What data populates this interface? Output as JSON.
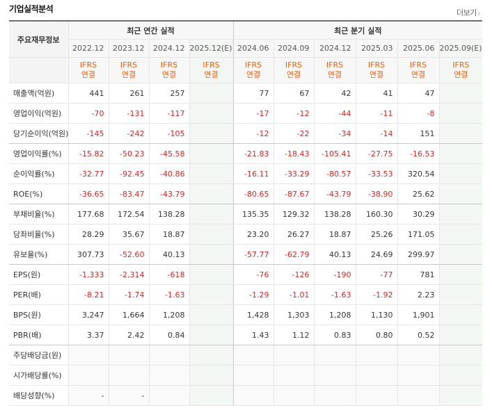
{
  "page": {
    "title": "기업실적분석",
    "more_label": "더보기"
  },
  "header": {
    "corner_label": "주요재무정보",
    "annual_group": "최근 연간 실적",
    "quarter_group": "최근 분기 실적",
    "annual_periods": [
      "2022.12",
      "2023.12",
      "2024.12",
      "2025.12(E)"
    ],
    "quarter_periods": [
      "2024.06",
      "2024.09",
      "2024.12",
      "2025.03",
      "2025.06",
      "2025.09(E)"
    ],
    "ifrs_line1": "IFRS",
    "ifrs_line2": "연결"
  },
  "rows": [
    {
      "label": "매출액(억원)",
      "values": [
        "441",
        "261",
        "257",
        "",
        "77",
        "67",
        "42",
        "41",
        "47",
        ""
      ]
    },
    {
      "label": "영업이익(억원)",
      "values": [
        "-70",
        "-131",
        "-117",
        "",
        "-17",
        "-12",
        "-44",
        "-11",
        "-8",
        ""
      ]
    },
    {
      "label": "당기순이익(억원)",
      "values": [
        "-145",
        "-242",
        "-105",
        "",
        "-12",
        "-22",
        "-34",
        "-14",
        "151",
        ""
      ]
    },
    {
      "label": "영업이익률(%)",
      "values": [
        "-15.82",
        "-50.23",
        "-45.58",
        "",
        "-21.83",
        "-18.43",
        "-105.41",
        "-27.75",
        "-16.53",
        ""
      ]
    },
    {
      "label": "순이익률(%)",
      "values": [
        "-32.77",
        "-92.45",
        "-40.86",
        "",
        "-16.11",
        "-33.29",
        "-80.57",
        "-33.53",
        "320.54",
        ""
      ]
    },
    {
      "label": "ROE(%)",
      "values": [
        "-36.65",
        "-83.47",
        "-43.79",
        "",
        "-80.65",
        "-87.67",
        "-43.79",
        "-38.90",
        "25.62",
        ""
      ]
    },
    {
      "label": "부채비율(%)",
      "values": [
        "177.68",
        "172.54",
        "138.28",
        "",
        "135.35",
        "129.32",
        "138.28",
        "160.30",
        "30.29",
        ""
      ]
    },
    {
      "label": "당좌비율(%)",
      "values": [
        "28.29",
        "35.67",
        "18.87",
        "",
        "23.20",
        "26.27",
        "18.87",
        "25.26",
        "171.05",
        ""
      ]
    },
    {
      "label": "유보율(%)",
      "values": [
        "307.73",
        "-52.60",
        "40.13",
        "",
        "-57.77",
        "-62.79",
        "40.13",
        "24.69",
        "299.97",
        ""
      ]
    },
    {
      "label": "EPS(원)",
      "values": [
        "-1,333",
        "-2,314",
        "-618",
        "",
        "-76",
        "-126",
        "-190",
        "-77",
        "781",
        ""
      ]
    },
    {
      "label": "PER(배)",
      "values": [
        "-8.21",
        "-1.74",
        "-1.63",
        "",
        "-1.29",
        "-1.01",
        "-1.63",
        "-1.92",
        "2.23",
        ""
      ]
    },
    {
      "label": "BPS(원)",
      "values": [
        "3,247",
        "1,664",
        "1,208",
        "",
        "1,428",
        "1,303",
        "1,208",
        "1,130",
        "1,901",
        ""
      ]
    },
    {
      "label": "PBR(배)",
      "values": [
        "3.37",
        "2.42",
        "0.84",
        "",
        "1.43",
        "1.12",
        "0.83",
        "0.80",
        "0.52",
        ""
      ]
    },
    {
      "label": "주당배당금(원)",
      "values": [
        "",
        "",
        "",
        "",
        "",
        "",
        "",
        "",
        "",
        ""
      ]
    },
    {
      "label": "시가배당률(%)",
      "values": [
        "",
        "",
        "",
        "",
        "",
        "",
        "",
        "",
        "",
        ""
      ]
    },
    {
      "label": "배당성향(%)",
      "values": [
        "-",
        "-",
        "",
        "",
        "",
        "",
        "",
        "",
        "",
        ""
      ]
    }
  ],
  "colors": {
    "negative": "#e02222",
    "ifrs": "#ff5a00",
    "estimate_bg": "#f3f7f3"
  }
}
